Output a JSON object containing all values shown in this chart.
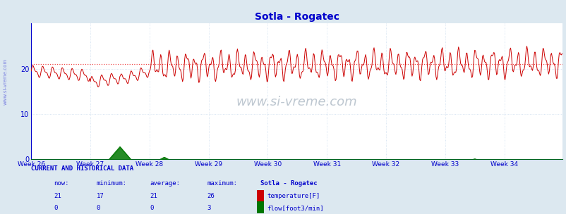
{
  "title": "Sotla - Rogatec",
  "fig_bg_color": "#dce8f0",
  "plot_bg_color": "#ffffff",
  "weeks": [
    "Week 26",
    "Week 27",
    "Week 28",
    "Week 29",
    "Week 30",
    "Week 31",
    "Week 32",
    "Week 33",
    "Week 34"
  ],
  "n_points": 756,
  "ylim": [
    0,
    30
  ],
  "yticks": [
    0,
    10,
    20
  ],
  "temp_avg_line": 21.0,
  "temp_color": "#cc0000",
  "flow_color": "#007700",
  "avg_line_color": "#ee3333",
  "grid_color": "#ccddee",
  "axis_color": "#0000cc",
  "text_color": "#0000cc",
  "watermark": "www.si-vreme.com",
  "sidebar_text": "www.si-vreme.com",
  "current_and_historical": "CURRENT AND HISTORICAL DATA",
  "col_now": "now:",
  "col_min": "minimum:",
  "col_avg": "average:",
  "col_max": "maximum:",
  "station_label": "Sotla - Rogatec",
  "temp_label": "temperature[F]",
  "flow_label": "flow[foot3/min]",
  "temp_now": 21,
  "temp_min": 17,
  "temp_avg_val": 21,
  "temp_max": 26,
  "flow_now": 0,
  "flow_min": 0,
  "flow_avg_val": 0,
  "flow_max": 3
}
